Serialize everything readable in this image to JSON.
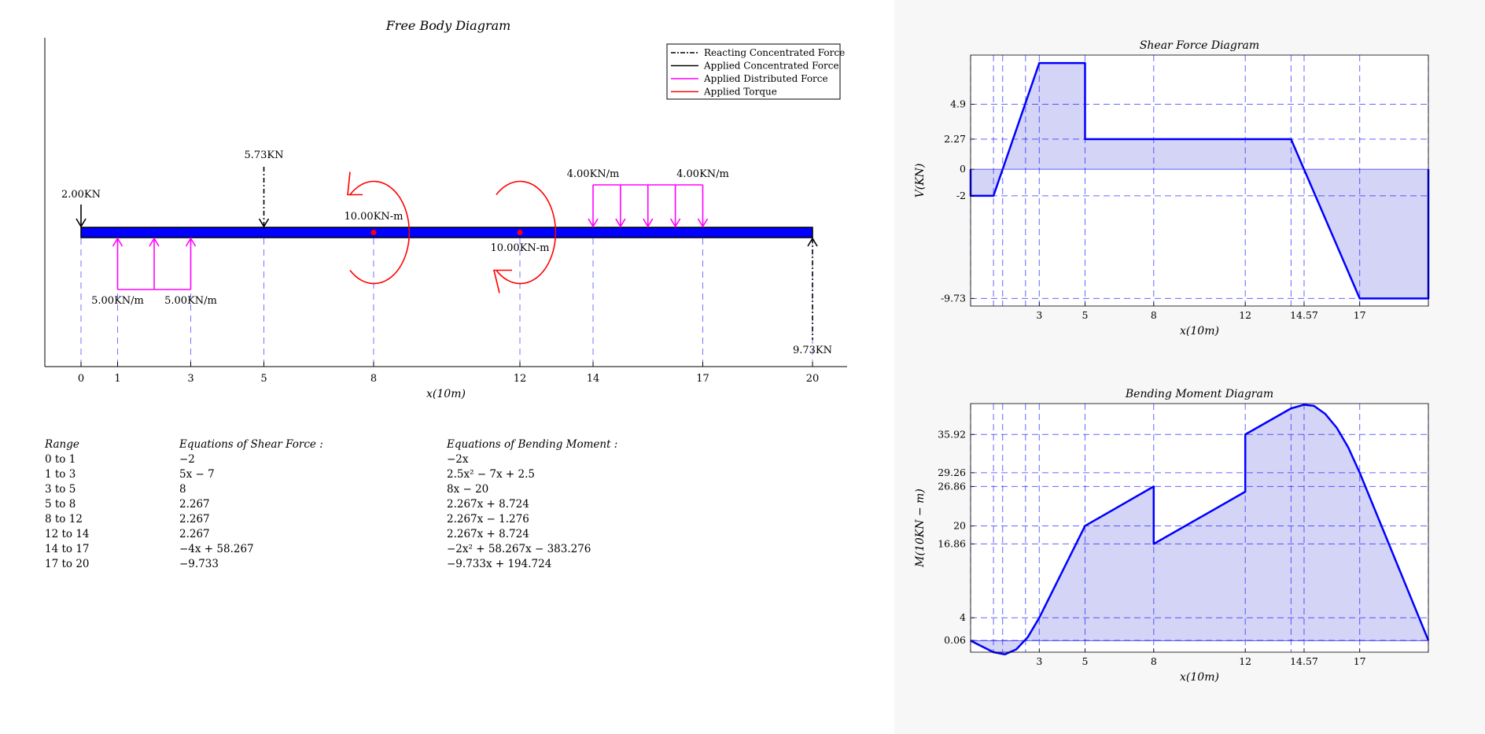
{
  "fbd": {
    "title": "Free Body Diagram",
    "xlabel": "x(10m)",
    "xticks": [
      0,
      1,
      3,
      5,
      8,
      12,
      14,
      17,
      20
    ],
    "legend": [
      {
        "label": "Reacting Concentrated Force",
        "color": "#000000",
        "style": "dashdot"
      },
      {
        "label": "Applied Concentrated Force",
        "color": "#000000",
        "style": "solid"
      },
      {
        "label": "Applied Distributed Force",
        "color": "#ff00ff",
        "style": "solid"
      },
      {
        "label": "Applied Torque",
        "color": "#ff0000",
        "style": "solid"
      }
    ],
    "beam": {
      "start": 0,
      "end": 20,
      "color": "#0000ff"
    },
    "reactions": [
      {
        "x": 5,
        "label": "5.73KN",
        "direction": "down"
      },
      {
        "x": 20,
        "label": "9.73KN",
        "direction": "up"
      }
    ],
    "point_loads": [
      {
        "x": 0,
        "label": "2.00KN",
        "direction": "down"
      }
    ],
    "distributed_loads": [
      {
        "from": 1,
        "to": 3,
        "label_start": "5.00KN/m",
        "label_end": "5.00KN/m",
        "direction": "up"
      },
      {
        "from": 14,
        "to": 17,
        "label_start": "4.00KN/m",
        "label_end": "4.00KN/m",
        "direction": "down"
      }
    ],
    "torques": [
      {
        "x": 8,
        "label": "10.00KN-m",
        "direction": "ccw"
      },
      {
        "x": 12,
        "label": "10.00KN-m",
        "direction": "cw"
      }
    ]
  },
  "equations": {
    "headers": {
      "range": "Range",
      "shear": "Equations of Shear Force :",
      "moment": "Equations of Bending Moment :"
    },
    "rows": [
      {
        "range": "0 to 1",
        "shear": "−2",
        "moment": "−2x"
      },
      {
        "range": "1 to 3",
        "shear": "5x − 7",
        "moment": "2.5x² − 7x + 2.5"
      },
      {
        "range": "3 to 5",
        "shear": "8",
        "moment": "8x − 20"
      },
      {
        "range": "5 to 8",
        "shear": "2.267",
        "moment": "2.267x + 8.724"
      },
      {
        "range": "8 to 12",
        "shear": "2.267",
        "moment": "2.267x − 1.276"
      },
      {
        "range": "12 to 14",
        "shear": "2.267",
        "moment": "2.267x + 8.724"
      },
      {
        "range": "14 to 17",
        "shear": "−4x + 58.267",
        "moment": "−2x² + 58.267x − 383.276"
      },
      {
        "range": "17 to 20",
        "shear": "−9.733",
        "moment": "−9.733x + 194.724"
      }
    ]
  },
  "chart_data": [
    {
      "type": "area",
      "title": "Shear Force Diagram",
      "xlabel": "x(10m)",
      "ylabel": "V(KN)",
      "xlim": [
        0,
        20
      ],
      "ylim": [
        -10.3,
        8.6
      ],
      "xticks": [
        3,
        5,
        8,
        12,
        14.57,
        17
      ],
      "yticks": [
        4.9,
        2.27,
        0,
        -2,
        -9.73
      ],
      "vgrid": [
        0,
        1,
        1.4,
        2.4,
        3,
        5,
        8,
        12,
        14,
        14.57,
        17,
        20
      ],
      "hgrid": [
        4.9,
        2.27,
        -2,
        -9.73
      ],
      "fill": "#d4d4f7",
      "line_color": "#0000ff",
      "x": [
        0,
        0,
        1,
        3,
        5,
        5,
        14,
        17,
        20,
        20
      ],
      "y": [
        0,
        -2,
        -2,
        8,
        8,
        2.267,
        2.267,
        -9.733,
        -9.733,
        0
      ]
    },
    {
      "type": "area",
      "title": "Bending Moment Diagram",
      "xlabel": "x(10m)",
      "ylabel": "M(10KN − m)",
      "xlim": [
        0,
        20
      ],
      "ylim": [
        -2,
        41.3
      ],
      "xticks": [
        3,
        5,
        8,
        12,
        14.57,
        17
      ],
      "yticks": [
        35.92,
        29.26,
        26.86,
        20,
        16.86,
        4,
        0.06
      ],
      "vgrid": [
        0,
        1,
        1.4,
        2.4,
        3,
        5,
        8,
        12,
        14,
        14.57,
        17,
        20
      ],
      "hgrid": [
        35.92,
        29.26,
        26.86,
        20,
        16.86,
        4,
        0.06
      ],
      "fill": "#d4d4f7",
      "line_color": "#0000ff",
      "x": [
        0,
        0.5,
        1,
        1.5,
        2,
        2.5,
        3,
        5,
        8,
        8,
        12,
        12,
        14,
        14.57,
        15,
        15.5,
        16,
        16.5,
        17,
        20
      ],
      "y": [
        0,
        -1,
        -2,
        -2.38,
        -1.5,
        0.63,
        4,
        20,
        26.86,
        16.86,
        25.95,
        35.92,
        40.46,
        41.1,
        40.9,
        39.48,
        37.07,
        33.66,
        29.26,
        0.06
      ]
    }
  ]
}
